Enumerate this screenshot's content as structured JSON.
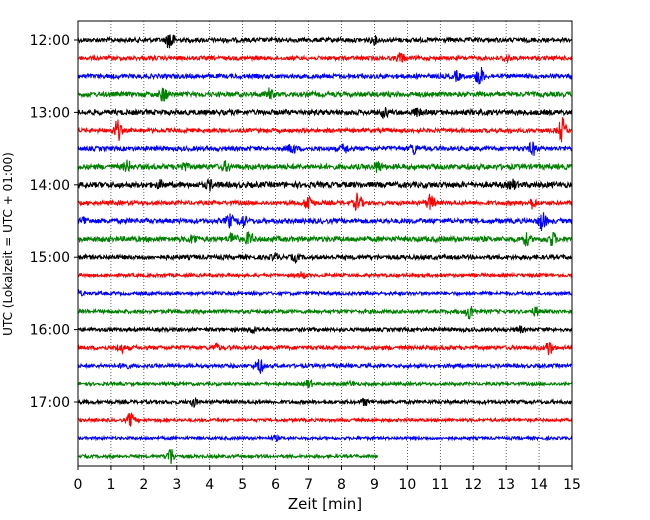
{
  "chart_data": {
    "type": "line",
    "title": "",
    "xlabel": "Zeit  [min]",
    "ylabel": "UTC (Lokalzeit = UTC + 01:00)",
    "xlim": [
      0,
      15
    ],
    "x_ticks": [
      "0",
      "1",
      "2",
      "3",
      "4",
      "5",
      "6",
      "7",
      "8",
      "9",
      "10",
      "11",
      "12",
      "13",
      "14",
      "15"
    ],
    "y_ticks": [
      "12:00",
      "13:00",
      "14:00",
      "15:00",
      "16:00",
      "17:00"
    ],
    "grid": "vertical dotted",
    "legend": "none",
    "colors": [
      "#000000",
      "#ff0000",
      "#0000ff",
      "#008000"
    ],
    "traces": [
      {
        "start": "12:00",
        "color": "#000000",
        "end_min": 15,
        "events": [
          [
            2.8,
            11
          ],
          [
            9.0,
            3
          ]
        ],
        "noise": 2.2
      },
      {
        "start": "12:15",
        "color": "#ff0000",
        "end_min": 15,
        "events": [
          [
            9.8,
            5
          ],
          [
            13.0,
            3
          ]
        ],
        "noise": 2.0
      },
      {
        "start": "12:30",
        "color": "#0000ff",
        "end_min": 15,
        "events": [
          [
            12.2,
            10
          ],
          [
            11.5,
            4
          ]
        ],
        "noise": 2.2
      },
      {
        "start": "12:45",
        "color": "#008000",
        "end_min": 15,
        "events": [
          [
            2.6,
            7
          ],
          [
            5.8,
            5
          ]
        ],
        "noise": 2.4
      },
      {
        "start": "13:00",
        "color": "#000000",
        "end_min": 15,
        "events": [
          [
            9.3,
            4
          ],
          [
            10.3,
            3
          ]
        ],
        "noise": 2.6
      },
      {
        "start": "13:15",
        "color": "#ff0000",
        "end_min": 15,
        "events": [
          [
            1.2,
            10
          ],
          [
            14.7,
            12
          ]
        ],
        "noise": 2.0
      },
      {
        "start": "13:30",
        "color": "#0000ff",
        "end_min": 15,
        "events": [
          [
            6.5,
            5
          ],
          [
            8.1,
            4
          ],
          [
            10.2,
            5
          ],
          [
            13.8,
            6
          ]
        ],
        "noise": 2.2
      },
      {
        "start": "13:45",
        "color": "#008000",
        "end_min": 15,
        "events": [
          [
            1.5,
            5
          ],
          [
            3.2,
            4
          ],
          [
            4.5,
            4
          ],
          [
            9.1,
            5
          ]
        ],
        "noise": 2.6
      },
      {
        "start": "14:00",
        "color": "#000000",
        "end_min": 15,
        "events": [
          [
            2.5,
            3
          ],
          [
            4.0,
            4
          ],
          [
            13.2,
            4
          ]
        ],
        "noise": 2.8
      },
      {
        "start": "14:15",
        "color": "#ff0000",
        "end_min": 15,
        "events": [
          [
            7.0,
            9
          ],
          [
            8.5,
            9
          ],
          [
            10.7,
            8
          ],
          [
            13.8,
            5
          ]
        ],
        "noise": 2.0
      },
      {
        "start": "14:30",
        "color": "#0000ff",
        "end_min": 15,
        "events": [
          [
            0.2,
            4
          ],
          [
            4.6,
            6
          ],
          [
            5.0,
            6
          ],
          [
            14.1,
            9
          ]
        ],
        "noise": 2.4
      },
      {
        "start": "14:45",
        "color": "#008000",
        "end_min": 15,
        "events": [
          [
            3.5,
            4
          ],
          [
            4.7,
            7
          ],
          [
            5.2,
            6
          ],
          [
            13.6,
            5
          ],
          [
            14.4,
            6
          ]
        ],
        "noise": 2.6
      },
      {
        "start": "15:00",
        "color": "#000000",
        "end_min": 15,
        "events": [
          [
            6.0,
            3
          ],
          [
            6.6,
            3
          ]
        ],
        "noise": 2.2
      },
      {
        "start": "15:15",
        "color": "#ff0000",
        "end_min": 15,
        "events": [
          [
            6.8,
            3
          ]
        ],
        "noise": 1.6
      },
      {
        "start": "15:30",
        "color": "#0000ff",
        "end_min": 15,
        "events": [
          [
            0.0,
            3
          ]
        ],
        "noise": 1.6
      },
      {
        "start": "15:45",
        "color": "#008000",
        "end_min": 15,
        "events": [
          [
            11.9,
            8
          ],
          [
            13.9,
            4
          ]
        ],
        "noise": 1.8
      },
      {
        "start": "16:00",
        "color": "#000000",
        "end_min": 15,
        "events": [
          [
            5.3,
            3
          ],
          [
            13.4,
            3
          ]
        ],
        "noise": 1.8
      },
      {
        "start": "16:15",
        "color": "#ff0000",
        "end_min": 15,
        "events": [
          [
            1.3,
            4
          ],
          [
            4.2,
            3
          ],
          [
            14.3,
            7
          ]
        ],
        "noise": 2.0
      },
      {
        "start": "16:30",
        "color": "#0000ff",
        "end_min": 15,
        "events": [
          [
            1.4,
            4
          ],
          [
            5.5,
            8
          ]
        ],
        "noise": 1.8
      },
      {
        "start": "16:45",
        "color": "#008000",
        "end_min": 15,
        "events": [
          [
            7.0,
            4
          ],
          [
            8.3,
            2
          ]
        ],
        "noise": 1.5
      },
      {
        "start": "17:00",
        "color": "#000000",
        "end_min": 15,
        "events": [
          [
            3.5,
            4
          ],
          [
            8.7,
            3
          ]
        ],
        "noise": 1.8
      },
      {
        "start": "17:15",
        "color": "#ff0000",
        "end_min": 15,
        "events": [
          [
            1.6,
            7
          ]
        ],
        "noise": 1.5
      },
      {
        "start": "17:30",
        "color": "#0000ff",
        "end_min": 15,
        "events": [
          [
            6.0,
            2
          ]
        ],
        "noise": 1.4
      },
      {
        "start": "17:45",
        "color": "#008000",
        "end_min": 9.1,
        "events": [
          [
            2.8,
            9
          ]
        ],
        "noise": 1.5
      }
    ]
  }
}
